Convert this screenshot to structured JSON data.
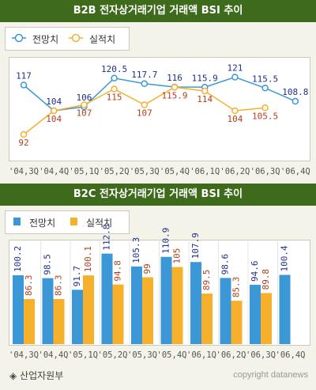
{
  "footer": {
    "source": "◈ 산업자원부",
    "credit": "copyright datanews"
  },
  "colors": {
    "header_bg": "#3e6a1c",
    "forecast": "#3c97d6",
    "actual": "#f7b02c",
    "forecast_label": "#1f2f8a",
    "actual_label": "#b0401c"
  },
  "chart_data": [
    {
      "type": "line",
      "title": "B2B 전자상거래기업 거래액 BSI 추이",
      "categories": [
        "'04,3Q",
        "'04,4Q",
        "'05,1Q",
        "'05,2Q",
        "'05,3Q",
        "'05,4Q",
        "'06,1Q",
        "'06,2Q",
        "'06,3Q",
        "'06,4Q"
      ],
      "series": [
        {
          "name": "전망치",
          "values": [
            117,
            104,
            106,
            120.5,
            117.7,
            116,
            115.9,
            121,
            115.5,
            108.8
          ]
        },
        {
          "name": "실적치",
          "values": [
            92,
            104,
            107,
            115,
            107,
            115.9,
            114,
            104,
            105.5,
            null
          ]
        }
      ],
      "ylim": [
        80,
        130
      ],
      "legend": "top-left"
    },
    {
      "type": "bar",
      "title": "B2C 전자상거래기업 거래액 BSI 추이",
      "categories": [
        "'04,3Q",
        "'04,4Q",
        "'05,1Q",
        "'05,2Q",
        "'05,3Q",
        "'05,4Q",
        "'06,1Q",
        "'06,2Q",
        "'06,3Q",
        "'06,4Q"
      ],
      "series": [
        {
          "name": "전망치",
          "values": [
            100.2,
            98.5,
            91.7,
            112.8,
            105.3,
            110.9,
            107.9,
            98.6,
            94.6,
            100.4
          ]
        },
        {
          "name": "실적치",
          "values": [
            86.3,
            86.3,
            100.1,
            94.8,
            99,
            105,
            89.5,
            85.3,
            89.8,
            null
          ]
        }
      ],
      "ylim": [
        60,
        120
      ],
      "legend": "top-left"
    }
  ]
}
